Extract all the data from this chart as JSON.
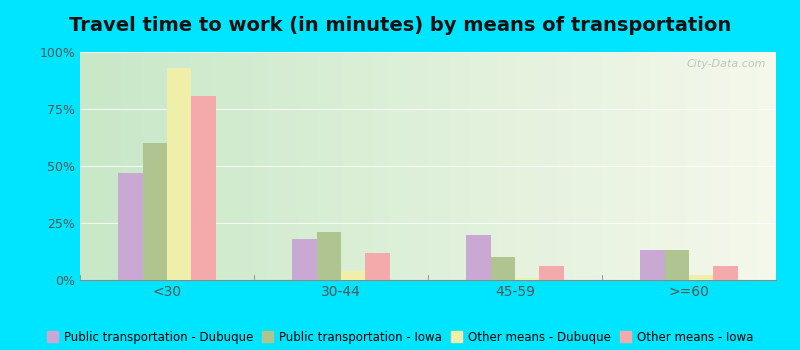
{
  "title": "Travel time to work (in minutes) by means of transportation",
  "categories": [
    "<30",
    "30-44",
    "45-59",
    ">=60"
  ],
  "series": {
    "Public transportation - Dubuque": [
      47,
      18,
      20,
      13
    ],
    "Public transportation - Iowa": [
      60,
      21,
      10,
      13
    ],
    "Other means - Dubuque": [
      93,
      4,
      1,
      2
    ],
    "Other means - Iowa": [
      81,
      12,
      6,
      6
    ]
  },
  "colors": {
    "Public transportation - Dubuque": "#c9a8d4",
    "Public transportation - Iowa": "#afc48e",
    "Other means - Dubuque": "#efefaa",
    "Other means - Iowa": "#f4aaaa"
  },
  "bg_left_color": "#c8e8c8",
  "bg_right_color": "#f0f5ec",
  "outer_background": "#00e5ff",
  "ylim": [
    0,
    100
  ],
  "yticks": [
    0,
    25,
    50,
    75,
    100
  ],
  "ytick_labels": [
    "0%",
    "25%",
    "50%",
    "75%",
    "100%"
  ],
  "title_fontsize": 14,
  "legend_fontsize": 8.5,
  "watermark": "City-Data.com"
}
